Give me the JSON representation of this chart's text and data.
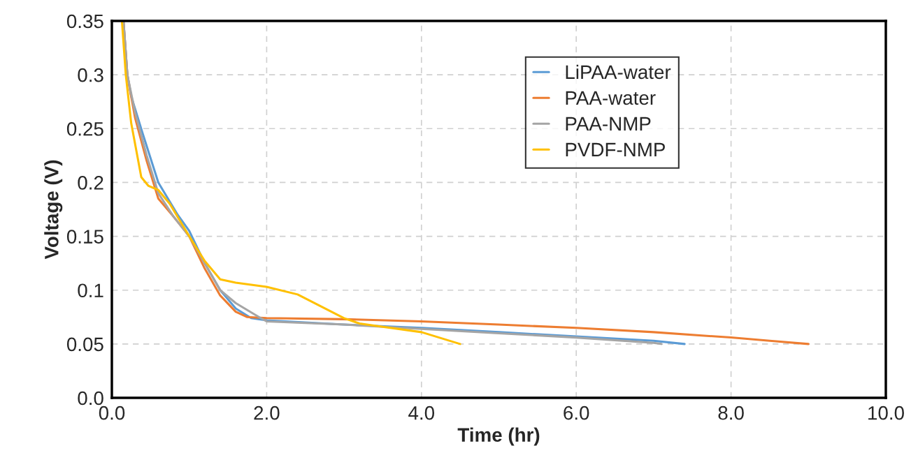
{
  "chart_data": {
    "type": "line",
    "xlabel": "Time (hr)",
    "ylabel": "Voltage (V)",
    "xlim": [
      0,
      10
    ],
    "xticks": [
      {
        "value": 0,
        "label": "0.0"
      },
      {
        "value": 2,
        "label": "2.0"
      },
      {
        "value": 4,
        "label": "4.0"
      },
      {
        "value": 6,
        "label": "6.0"
      },
      {
        "value": 8,
        "label": "8.0"
      },
      {
        "value": 10,
        "label": "10.0"
      }
    ],
    "ylim": [
      0,
      0.35
    ],
    "yticks": [
      {
        "value": 0,
        "label": "0.0"
      },
      0.05,
      0.1,
      0.15,
      0.2,
      0.25,
      0.3,
      0.35
    ],
    "grid": true,
    "legend": "top right",
    "marker": "none",
    "line_style": "solid",
    "series": [
      {
        "name": "LiPAA-water",
        "color": "#5b9bd5",
        "x": [
          0.15,
          0.2,
          0.25,
          0.4,
          0.6,
          0.85,
          1.0,
          1.2,
          1.4,
          1.6,
          1.8,
          2.0,
          3.0,
          4.0,
          5.0,
          6.0,
          7.0,
          7.4
        ],
        "values": [
          0.35,
          0.3,
          0.28,
          0.245,
          0.2,
          0.17,
          0.155,
          0.125,
          0.1,
          0.083,
          0.074,
          0.072,
          0.068,
          0.065,
          0.061,
          0.057,
          0.053,
          0.05
        ]
      },
      {
        "name": "PAA-water",
        "color": "#ed7d31",
        "x": [
          0.15,
          0.2,
          0.3,
          0.45,
          0.6,
          0.8,
          1.0,
          1.2,
          1.4,
          1.6,
          1.75,
          2.0,
          3.0,
          4.0,
          5.0,
          6.0,
          7.0,
          8.0,
          8.5,
          9.0
        ],
        "values": [
          0.35,
          0.3,
          0.26,
          0.22,
          0.185,
          0.168,
          0.15,
          0.12,
          0.095,
          0.08,
          0.075,
          0.074,
          0.073,
          0.071,
          0.068,
          0.065,
          0.061,
          0.056,
          0.053,
          0.05
        ]
      },
      {
        "name": "PAA-NMP",
        "color": "#a5a5a5",
        "x": [
          0.15,
          0.2,
          0.3,
          0.45,
          0.6,
          0.8,
          1.0,
          1.2,
          1.4,
          1.6,
          1.9,
          2.0,
          3.0,
          4.0,
          5.0,
          6.0,
          7.0,
          7.1
        ],
        "values": [
          0.35,
          0.3,
          0.265,
          0.225,
          0.19,
          0.168,
          0.15,
          0.125,
          0.1,
          0.088,
          0.075,
          0.071,
          0.068,
          0.064,
          0.06,
          0.056,
          0.051,
          0.05
        ]
      },
      {
        "name": "PVDF-NMP",
        "color": "#ffc000",
        "x": [
          0.13,
          0.18,
          0.25,
          0.38,
          0.47,
          0.6,
          0.75,
          1.0,
          1.2,
          1.4,
          1.6,
          2.0,
          2.4,
          2.7,
          3.0,
          3.2,
          3.5,
          4.0,
          4.5
        ],
        "values": [
          0.35,
          0.3,
          0.255,
          0.205,
          0.197,
          0.193,
          0.18,
          0.15,
          0.127,
          0.11,
          0.107,
          0.103,
          0.096,
          0.085,
          0.074,
          0.069,
          0.066,
          0.061,
          0.05
        ]
      }
    ]
  }
}
